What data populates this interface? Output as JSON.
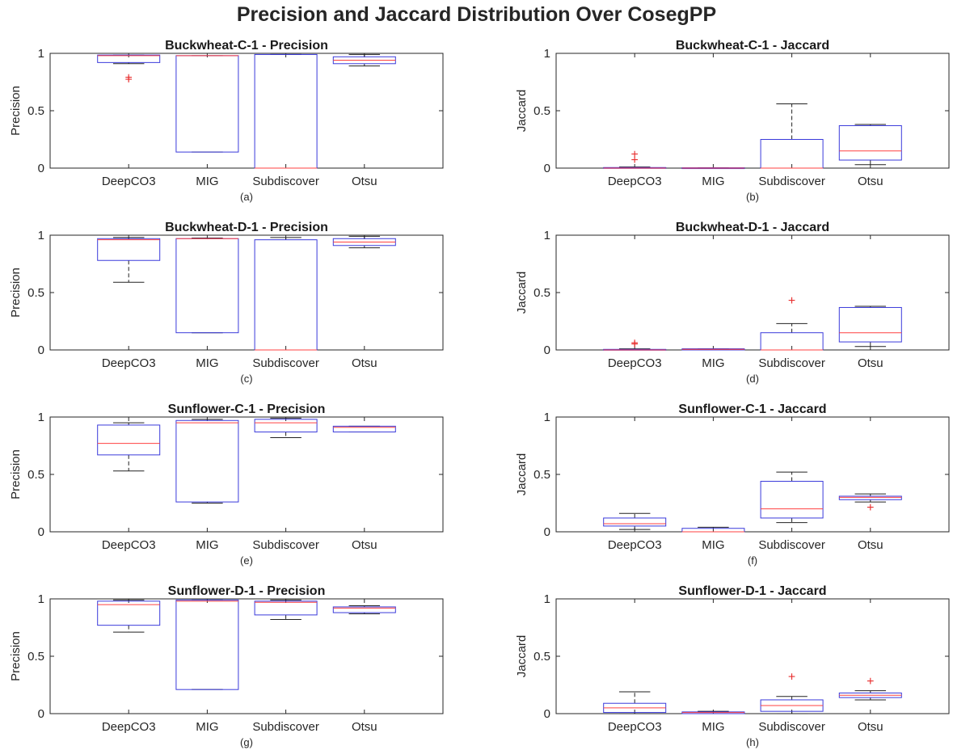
{
  "suptitle": "Precision and Jaccard Distribution Over CosegPP",
  "colors": {
    "box": "#3a3adb",
    "median": "#ff4040",
    "whisker": "#222222",
    "outlier": "#e83030",
    "axis": "#262626",
    "grid_text": "#262626"
  },
  "chart_data": [
    {
      "type": "box",
      "title": "Buckwheat-C-1 - Precision",
      "ylabel": "Precision",
      "xlabel": "(a)",
      "categories": [
        "DeepCO3",
        "MIG",
        "Subdiscover",
        "Otsu"
      ],
      "ylim": [
        0,
        1
      ],
      "yticks": [
        "0",
        "0.5",
        "1"
      ],
      "grid": false,
      "boxes": [
        {
          "min": 0.91,
          "q1": 0.92,
          "median": 0.98,
          "q3": 0.985,
          "max": 0.985,
          "outliers": [
            0.77,
            0.79
          ]
        },
        {
          "min": 0.14,
          "q1": 0.14,
          "median": 0.98,
          "q3": 0.98,
          "max": 0.98,
          "outliers": []
        },
        {
          "min": 0.0,
          "q1": 0.0,
          "median": 0.0,
          "q3": 0.99,
          "max": 0.99,
          "outliers": []
        },
        {
          "min": 0.89,
          "q1": 0.91,
          "median": 0.94,
          "q3": 0.97,
          "max": 0.99,
          "outliers": []
        }
      ]
    },
    {
      "type": "box",
      "title": "Buckwheat-C-1 - Jaccard",
      "ylabel": "Jaccard",
      "xlabel": "(b)",
      "categories": [
        "DeepCO3",
        "MIG",
        "Subdiscover",
        "Otsu"
      ],
      "ylim": [
        0,
        1
      ],
      "yticks": [
        "0",
        "0.5",
        "1"
      ],
      "grid": false,
      "boxes": [
        {
          "min": 0.0,
          "q1": 0.0,
          "median": 0.0,
          "q3": 0.005,
          "max": 0.01,
          "outliers": [
            0.07,
            0.12
          ]
        },
        {
          "min": 0.0,
          "q1": 0.0,
          "median": 0.0,
          "q3": 0.003,
          "max": 0.003,
          "outliers": []
        },
        {
          "min": 0.0,
          "q1": 0.0,
          "median": 0.0,
          "q3": 0.25,
          "max": 0.56,
          "outliers": []
        },
        {
          "min": 0.03,
          "q1": 0.07,
          "median": 0.15,
          "q3": 0.37,
          "max": 0.38,
          "outliers": []
        }
      ]
    },
    {
      "type": "box",
      "title": "Buckwheat-D-1 - Precision",
      "ylabel": "Precision",
      "xlabel": "(c)",
      "categories": [
        "DeepCO3",
        "MIG",
        "Subdiscover",
        "Otsu"
      ],
      "ylim": [
        0,
        1
      ],
      "yticks": [
        "0",
        "0.5",
        "1"
      ],
      "grid": false,
      "boxes": [
        {
          "min": 0.59,
          "q1": 0.78,
          "median": 0.96,
          "q3": 0.97,
          "max": 0.98,
          "outliers": []
        },
        {
          "min": 0.15,
          "q1": 0.15,
          "median": 0.97,
          "q3": 0.97,
          "max": 0.975,
          "outliers": []
        },
        {
          "min": 0.0,
          "q1": 0.0,
          "median": 0.0,
          "q3": 0.96,
          "max": 0.98,
          "outliers": []
        },
        {
          "min": 0.89,
          "q1": 0.91,
          "median": 0.94,
          "q3": 0.97,
          "max": 0.99,
          "outliers": []
        }
      ]
    },
    {
      "type": "box",
      "title": "Buckwheat-D-1 - Jaccard",
      "ylabel": "Jaccard",
      "xlabel": "(d)",
      "categories": [
        "DeepCO3",
        "MIG",
        "Subdiscover",
        "Otsu"
      ],
      "ylim": [
        0,
        1
      ],
      "yticks": [
        "0",
        "0.5",
        "1"
      ],
      "grid": false,
      "boxes": [
        {
          "min": 0.0,
          "q1": 0.0,
          "median": 0.0,
          "q3": 0.005,
          "max": 0.01,
          "outliers": [
            0.05,
            0.06
          ]
        },
        {
          "min": 0.0,
          "q1": 0.0,
          "median": 0.005,
          "q3": 0.01,
          "max": 0.01,
          "outliers": []
        },
        {
          "min": 0.0,
          "q1": 0.0,
          "median": 0.0,
          "q3": 0.15,
          "max": 0.23,
          "outliers": [
            0.43
          ]
        },
        {
          "min": 0.03,
          "q1": 0.07,
          "median": 0.15,
          "q3": 0.37,
          "max": 0.38,
          "outliers": []
        }
      ]
    },
    {
      "type": "box",
      "title": "Sunflower-C-1 - Precision",
      "ylabel": "Precision",
      "xlabel": "(e)",
      "categories": [
        "DeepCO3",
        "MIG",
        "Subdiscover",
        "Otsu"
      ],
      "ylim": [
        0,
        1
      ],
      "yticks": [
        "0",
        "0.5",
        "1"
      ],
      "grid": false,
      "boxes": [
        {
          "min": 0.53,
          "q1": 0.67,
          "median": 0.77,
          "q3": 0.93,
          "max": 0.95,
          "outliers": []
        },
        {
          "min": 0.25,
          "q1": 0.26,
          "median": 0.95,
          "q3": 0.97,
          "max": 0.98,
          "outliers": []
        },
        {
          "min": 0.82,
          "q1": 0.87,
          "median": 0.95,
          "q3": 0.98,
          "max": 0.99,
          "outliers": []
        },
        {
          "min": 0.87,
          "q1": 0.87,
          "median": 0.91,
          "q3": 0.92,
          "max": 0.92,
          "outliers": []
        }
      ]
    },
    {
      "type": "box",
      "title": "Sunflower-C-1 - Jaccard",
      "ylabel": "Jaccard",
      "xlabel": "(f)",
      "categories": [
        "DeepCO3",
        "MIG",
        "Subdiscover",
        "Otsu"
      ],
      "ylim": [
        0,
        1
      ],
      "yticks": [
        "0",
        "0.5",
        "1"
      ],
      "grid": false,
      "boxes": [
        {
          "min": 0.02,
          "q1": 0.05,
          "median": 0.07,
          "q3": 0.12,
          "max": 0.16,
          "outliers": []
        },
        {
          "min": 0.0,
          "q1": 0.0,
          "median": 0.0,
          "q3": 0.03,
          "max": 0.04,
          "outliers": []
        },
        {
          "min": 0.08,
          "q1": 0.12,
          "median": 0.2,
          "q3": 0.44,
          "max": 0.52,
          "outliers": []
        },
        {
          "min": 0.26,
          "q1": 0.28,
          "median": 0.3,
          "q3": 0.31,
          "max": 0.33,
          "outliers": [
            0.21
          ]
        }
      ]
    },
    {
      "type": "box",
      "title": "Sunflower-D-1 - Precision",
      "ylabel": "Precision",
      "xlabel": "(g)",
      "categories": [
        "DeepCO3",
        "MIG",
        "Subdiscover",
        "Otsu"
      ],
      "ylim": [
        0,
        1
      ],
      "yticks": [
        "0",
        "0.5",
        "1"
      ],
      "grid": false,
      "boxes": [
        {
          "min": 0.71,
          "q1": 0.77,
          "median": 0.95,
          "q3": 0.98,
          "max": 0.99,
          "outliers": []
        },
        {
          "min": 0.21,
          "q1": 0.21,
          "median": 0.98,
          "q3": 0.99,
          "max": 0.99,
          "outliers": []
        },
        {
          "min": 0.82,
          "q1": 0.86,
          "median": 0.97,
          "q3": 0.98,
          "max": 0.99,
          "outliers": []
        },
        {
          "min": 0.87,
          "q1": 0.88,
          "median": 0.92,
          "q3": 0.93,
          "max": 0.94,
          "outliers": []
        }
      ]
    },
    {
      "type": "box",
      "title": "Sunflower-D-1 - Jaccard",
      "ylabel": "Jaccard",
      "xlabel": "(h)",
      "categories": [
        "DeepCO3",
        "MIG",
        "Subdiscover",
        "Otsu"
      ],
      "ylim": [
        0,
        1
      ],
      "yticks": [
        "0",
        "0.5",
        "1"
      ],
      "grid": false,
      "boxes": [
        {
          "min": 0.0,
          "q1": 0.01,
          "median": 0.05,
          "q3": 0.09,
          "max": 0.19,
          "outliers": []
        },
        {
          "min": 0.0,
          "q1": 0.0,
          "median": 0.01,
          "q3": 0.015,
          "max": 0.02,
          "outliers": []
        },
        {
          "min": 0.0,
          "q1": 0.02,
          "median": 0.07,
          "q3": 0.12,
          "max": 0.15,
          "outliers": [
            0.32
          ]
        },
        {
          "min": 0.12,
          "q1": 0.14,
          "median": 0.16,
          "q3": 0.18,
          "max": 0.2,
          "outliers": [
            0.28
          ]
        }
      ]
    }
  ]
}
